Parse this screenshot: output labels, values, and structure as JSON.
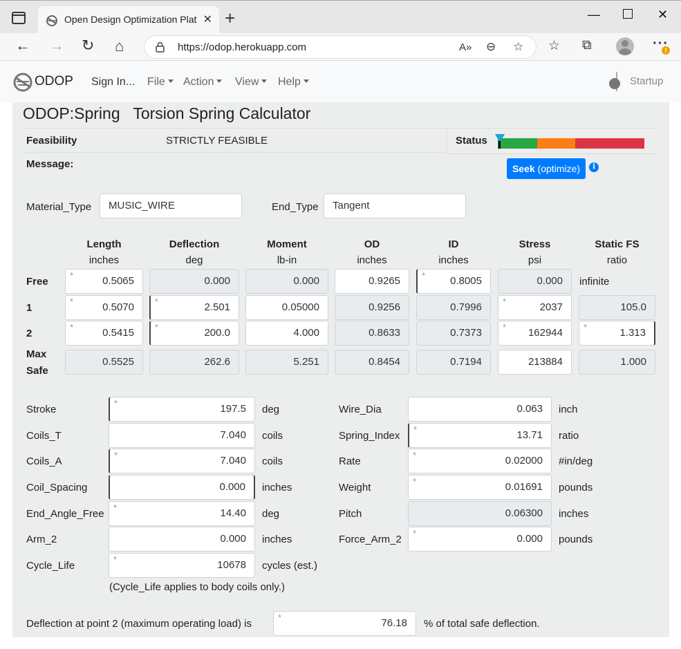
{
  "browser": {
    "tab_title": "Open Design Optimization Platfo",
    "url": "https://odop.herokuapp.com"
  },
  "nav": {
    "brand": "ODOP",
    "sign_in": "Sign In...",
    "file": "File",
    "action": "Action",
    "view": "View",
    "help": "Help",
    "startup": "Startup"
  },
  "page": {
    "title": "ODOP:Spring   Torsion Spring Calculator",
    "feasibility_label": "Feasibility",
    "feasibility_value": "STRICTLY FEASIBLE",
    "status_label": "Status",
    "message_label": "Message:",
    "seek_bold": "Seek",
    "seek_rest": " (optimize)",
    "status_colors": [
      "#28a745",
      "#fd7e14",
      "#dc3545"
    ]
  },
  "material": {
    "material_label": "Material_Type",
    "material_value": "MUSIC_WIRE",
    "end_label": "End_Type",
    "end_value": "Tangent"
  },
  "table": {
    "columns": [
      {
        "name": "Length",
        "unit": "inches"
      },
      {
        "name": "Deflection",
        "unit": "deg"
      },
      {
        "name": "Moment",
        "unit": "lb-in"
      },
      {
        "name": "OD",
        "unit": "inches"
      },
      {
        "name": "ID",
        "unit": "inches"
      },
      {
        "name": "Stress",
        "unit": "psi"
      },
      {
        "name": "Static FS",
        "unit": "ratio"
      }
    ],
    "rows": [
      {
        "label": "Free",
        "values": [
          "0.5065",
          "0.000",
          "0.000",
          "0.9265",
          "0.8005",
          "0.000",
          "infinite"
        ]
      },
      {
        "label": "1",
        "values": [
          "0.5070",
          "2.501",
          "0.05000",
          "0.9256",
          "0.7996",
          "2037",
          "105.0"
        ]
      },
      {
        "label": "2",
        "values": [
          "0.5415",
          "200.0",
          "4.000",
          "0.8633",
          "0.7373",
          "162944",
          "1.313"
        ]
      },
      {
        "label1": "Max",
        "label2": "Safe",
        "values": [
          "0.5525",
          "262.6",
          "5.251",
          "0.8454",
          "0.7194",
          "213884",
          "1.000"
        ]
      }
    ]
  },
  "left_params": [
    {
      "label": "Stroke",
      "value": "197.5",
      "unit": "deg"
    },
    {
      "label": "Coils_T",
      "value": "7.040",
      "unit": "coils"
    },
    {
      "label": "Coils_A",
      "value": "7.040",
      "unit": "coils"
    },
    {
      "label": "Coil_Spacing",
      "value": "0.000",
      "unit": "inches"
    },
    {
      "label": "End_Angle_Free",
      "value": "14.40",
      "unit": "deg"
    },
    {
      "label": "Arm_2",
      "value": "0.000",
      "unit": "inches"
    },
    {
      "label": "Cycle_Life",
      "value": "10678",
      "unit": "cycles (est.)"
    }
  ],
  "right_params": [
    {
      "label": "Wire_Dia",
      "value": "0.063",
      "unit": "inch"
    },
    {
      "label": "Spring_Index",
      "value": "13.71",
      "unit": "ratio"
    },
    {
      "label": "Rate",
      "value": "0.02000",
      "unit": "#in/deg"
    },
    {
      "label": "Weight",
      "value": "0.01691",
      "unit": "pounds"
    },
    {
      "label": "Pitch",
      "value": "0.06300",
      "unit": "inches"
    },
    {
      "label": "Force_Arm_2",
      "value": "0.000",
      "unit": "pounds"
    }
  ],
  "cycle_note": "(Cycle_Life applies to body coils only.)",
  "deflection_note": {
    "prefix": "Deflection at point 2 (maximum operating load) is",
    "value": "76.18",
    "suffix": "% of total safe deflection."
  }
}
